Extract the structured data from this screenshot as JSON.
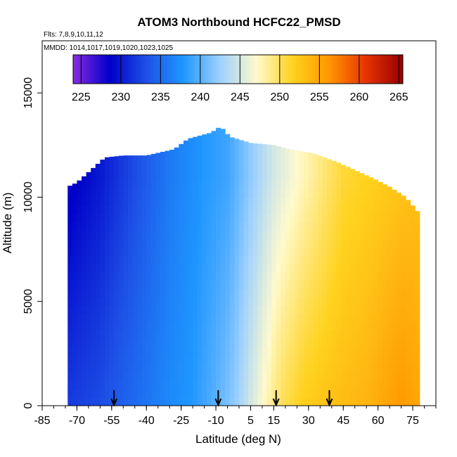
{
  "chart_data": {
    "type": "heatmap",
    "title": "ATOM3 Northbound HCFC22_PMSD",
    "subtitle_flights": "Flts: 7,8,9,10,11,12",
    "subtitle_dates": "MMDD: 1014,1017,1019,1020,1023,1025",
    "xlabel": "Latitude (deg N)",
    "ylabel": "Altitude (m)",
    "xlim": [
      -85,
      85
    ],
    "ylim": [
      0,
      17500
    ],
    "x_ticks": [
      "-85",
      "-70",
      "-55",
      "-40",
      "-25",
      "-10",
      "5",
      "15",
      "30",
      "45",
      "60",
      "75"
    ],
    "x_tick_values": [
      -85,
      -70,
      -55,
      -40,
      -25,
      -10,
      5,
      15,
      30,
      45,
      60,
      75
    ],
    "y_ticks": [
      "0",
      "5000",
      "10000",
      "15000"
    ],
    "y_tick_values": [
      0,
      5000,
      10000,
      15000
    ],
    "colorbar": {
      "min": 224,
      "max": 265.5,
      "tick_values": [
        225,
        230,
        235,
        240,
        245,
        250,
        255,
        260,
        265
      ],
      "tick_labels": [
        "225",
        "230",
        "235",
        "240",
        "245",
        "250",
        "255",
        "260",
        "265"
      ],
      "colors": [
        "#8a2be2",
        "#0000c8",
        "#1e50e6",
        "#1e96ff",
        "#9cd0ff",
        "#fffacd",
        "#ffd21e",
        "#ff9600",
        "#e63200",
        "#960000"
      ]
    },
    "grid": false,
    "legend": "colorbar at top",
    "arrows_latitude": [
      -54,
      -9,
      16,
      39
    ],
    "field": {
      "lat_min": -74,
      "lat_max": 78,
      "alt_top_profile": [
        [
          -76,
          10400
        ],
        [
          -70,
          10700
        ],
        [
          -64,
          11300
        ],
        [
          -58,
          11900
        ],
        [
          -50,
          12000
        ],
        [
          -40,
          12000
        ],
        [
          -28,
          12300
        ],
        [
          -22,
          12800
        ],
        [
          -12,
          13100
        ],
        [
          -8,
          13400
        ],
        [
          -4,
          12900
        ],
        [
          5,
          12600
        ],
        [
          15,
          12500
        ],
        [
          22,
          12300
        ],
        [
          32,
          12100
        ],
        [
          42,
          11700
        ],
        [
          50,
          11300
        ],
        [
          58,
          10900
        ],
        [
          65,
          10500
        ],
        [
          72,
          10000
        ],
        [
          78,
          9200
        ]
      ],
      "value_by_latitude": [
        [
          -74,
          232
        ],
        [
          -60,
          233
        ],
        [
          -45,
          235
        ],
        [
          -30,
          237
        ],
        [
          -20,
          238
        ],
        [
          -10,
          240
        ],
        [
          -2,
          242
        ],
        [
          5,
          245
        ],
        [
          10,
          247
        ],
        [
          18,
          250
        ],
        [
          28,
          252
        ],
        [
          40,
          253
        ],
        [
          55,
          254
        ],
        [
          70,
          256
        ],
        [
          78,
          255
        ]
      ],
      "upper_value_by_latitude": [
        [
          -74,
          228
        ],
        [
          -60,
          230
        ],
        [
          -45,
          233
        ],
        [
          -30,
          236
        ],
        [
          -15,
          238
        ],
        [
          -5,
          239
        ],
        [
          5,
          242
        ],
        [
          15,
          245
        ],
        [
          25,
          247
        ],
        [
          35,
          249
        ],
        [
          45,
          251
        ],
        [
          60,
          252
        ],
        [
          75,
          253
        ]
      ]
    }
  }
}
